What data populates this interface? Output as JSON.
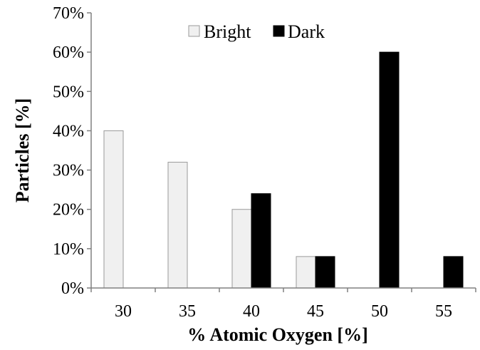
{
  "chart_data": {
    "type": "bar",
    "categories": [
      "30",
      "35",
      "40",
      "45",
      "50",
      "55"
    ],
    "series": [
      {
        "name": "Bright",
        "values": [
          40,
          32,
          20,
          8,
          0,
          0
        ],
        "color": "#f0f0f0"
      },
      {
        "name": "Dark",
        "values": [
          0,
          0,
          24,
          8,
          60,
          8
        ],
        "color": "#000000"
      }
    ],
    "title": "",
    "xlabel": "% Atomic Oxygen [%]",
    "ylabel": "Particles [%]",
    "ylim": [
      0,
      70
    ],
    "yticks": [
      0,
      10,
      20,
      30,
      40,
      50,
      60,
      70
    ],
    "ytick_labels": [
      "0%",
      "10%",
      "20%",
      "30%",
      "40%",
      "50%",
      "60%",
      "70%"
    ],
    "grid": false,
    "legend_position": "top-center"
  }
}
